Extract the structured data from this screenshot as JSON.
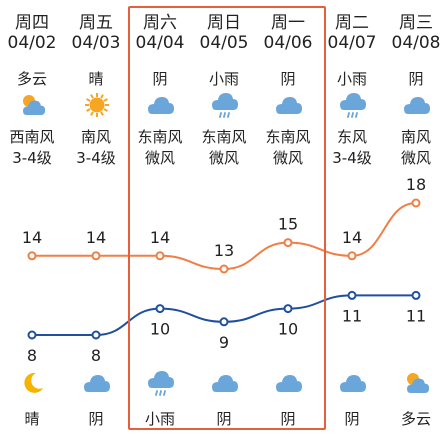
{
  "days": [
    {
      "day": "周四",
      "date": "04/02",
      "day_weather": "多云",
      "day_icon": "partly-cloudy-icon",
      "wind_dir": "西南风",
      "wind_level": "3-4级",
      "high": 14,
      "low": 8,
      "night_icon": "moon-icon",
      "night_weather": "晴"
    },
    {
      "day": "周五",
      "date": "04/03",
      "day_weather": "晴",
      "day_icon": "sun-icon",
      "wind_dir": "南风",
      "wind_level": "3-4级",
      "high": 14,
      "low": 8,
      "night_icon": "cloud-icon",
      "night_weather": "阴"
    },
    {
      "day": "周六",
      "date": "04/04",
      "day_weather": "阴",
      "day_icon": "cloud-icon",
      "wind_dir": "东南风",
      "wind_level": "微风",
      "high": 14,
      "low": 10,
      "night_icon": "rain-icon",
      "night_weather": "小雨"
    },
    {
      "day": "周日",
      "date": "04/05",
      "day_weather": "小雨",
      "day_icon": "rain-icon",
      "wind_dir": "东南风",
      "wind_level": "微风",
      "high": 13,
      "low": 9,
      "night_icon": "cloud-icon",
      "night_weather": "阴"
    },
    {
      "day": "周一",
      "date": "04/06",
      "day_weather": "阴",
      "day_icon": "cloud-icon",
      "wind_dir": "东南风",
      "wind_level": "微风",
      "high": 15,
      "low": 10,
      "night_icon": "cloud-icon",
      "night_weather": "阴"
    },
    {
      "day": "周二",
      "date": "04/07",
      "day_weather": "小雨",
      "day_icon": "rain-icon",
      "wind_dir": "东风",
      "wind_level": "3-4级",
      "high": 14,
      "low": 11,
      "night_icon": "cloud-icon",
      "night_weather": "阴"
    },
    {
      "day": "周三",
      "date": "04/08",
      "day_weather": "阴",
      "day_icon": "cloud-icon",
      "wind_dir": "南风",
      "wind_level": "微风",
      "high": 18,
      "low": 11,
      "night_icon": "partly-cloudy-icon",
      "night_weather": "多云"
    }
  ],
  "highlighted_days": [
    2,
    3,
    4
  ],
  "colors": {
    "high_line": "#f07f45",
    "low_line": "#1f4f9e",
    "highlight_border": "#e5603a",
    "cloud": "#6aa6d9",
    "sun": "#f5a623",
    "moon": "#f4b400"
  }
}
